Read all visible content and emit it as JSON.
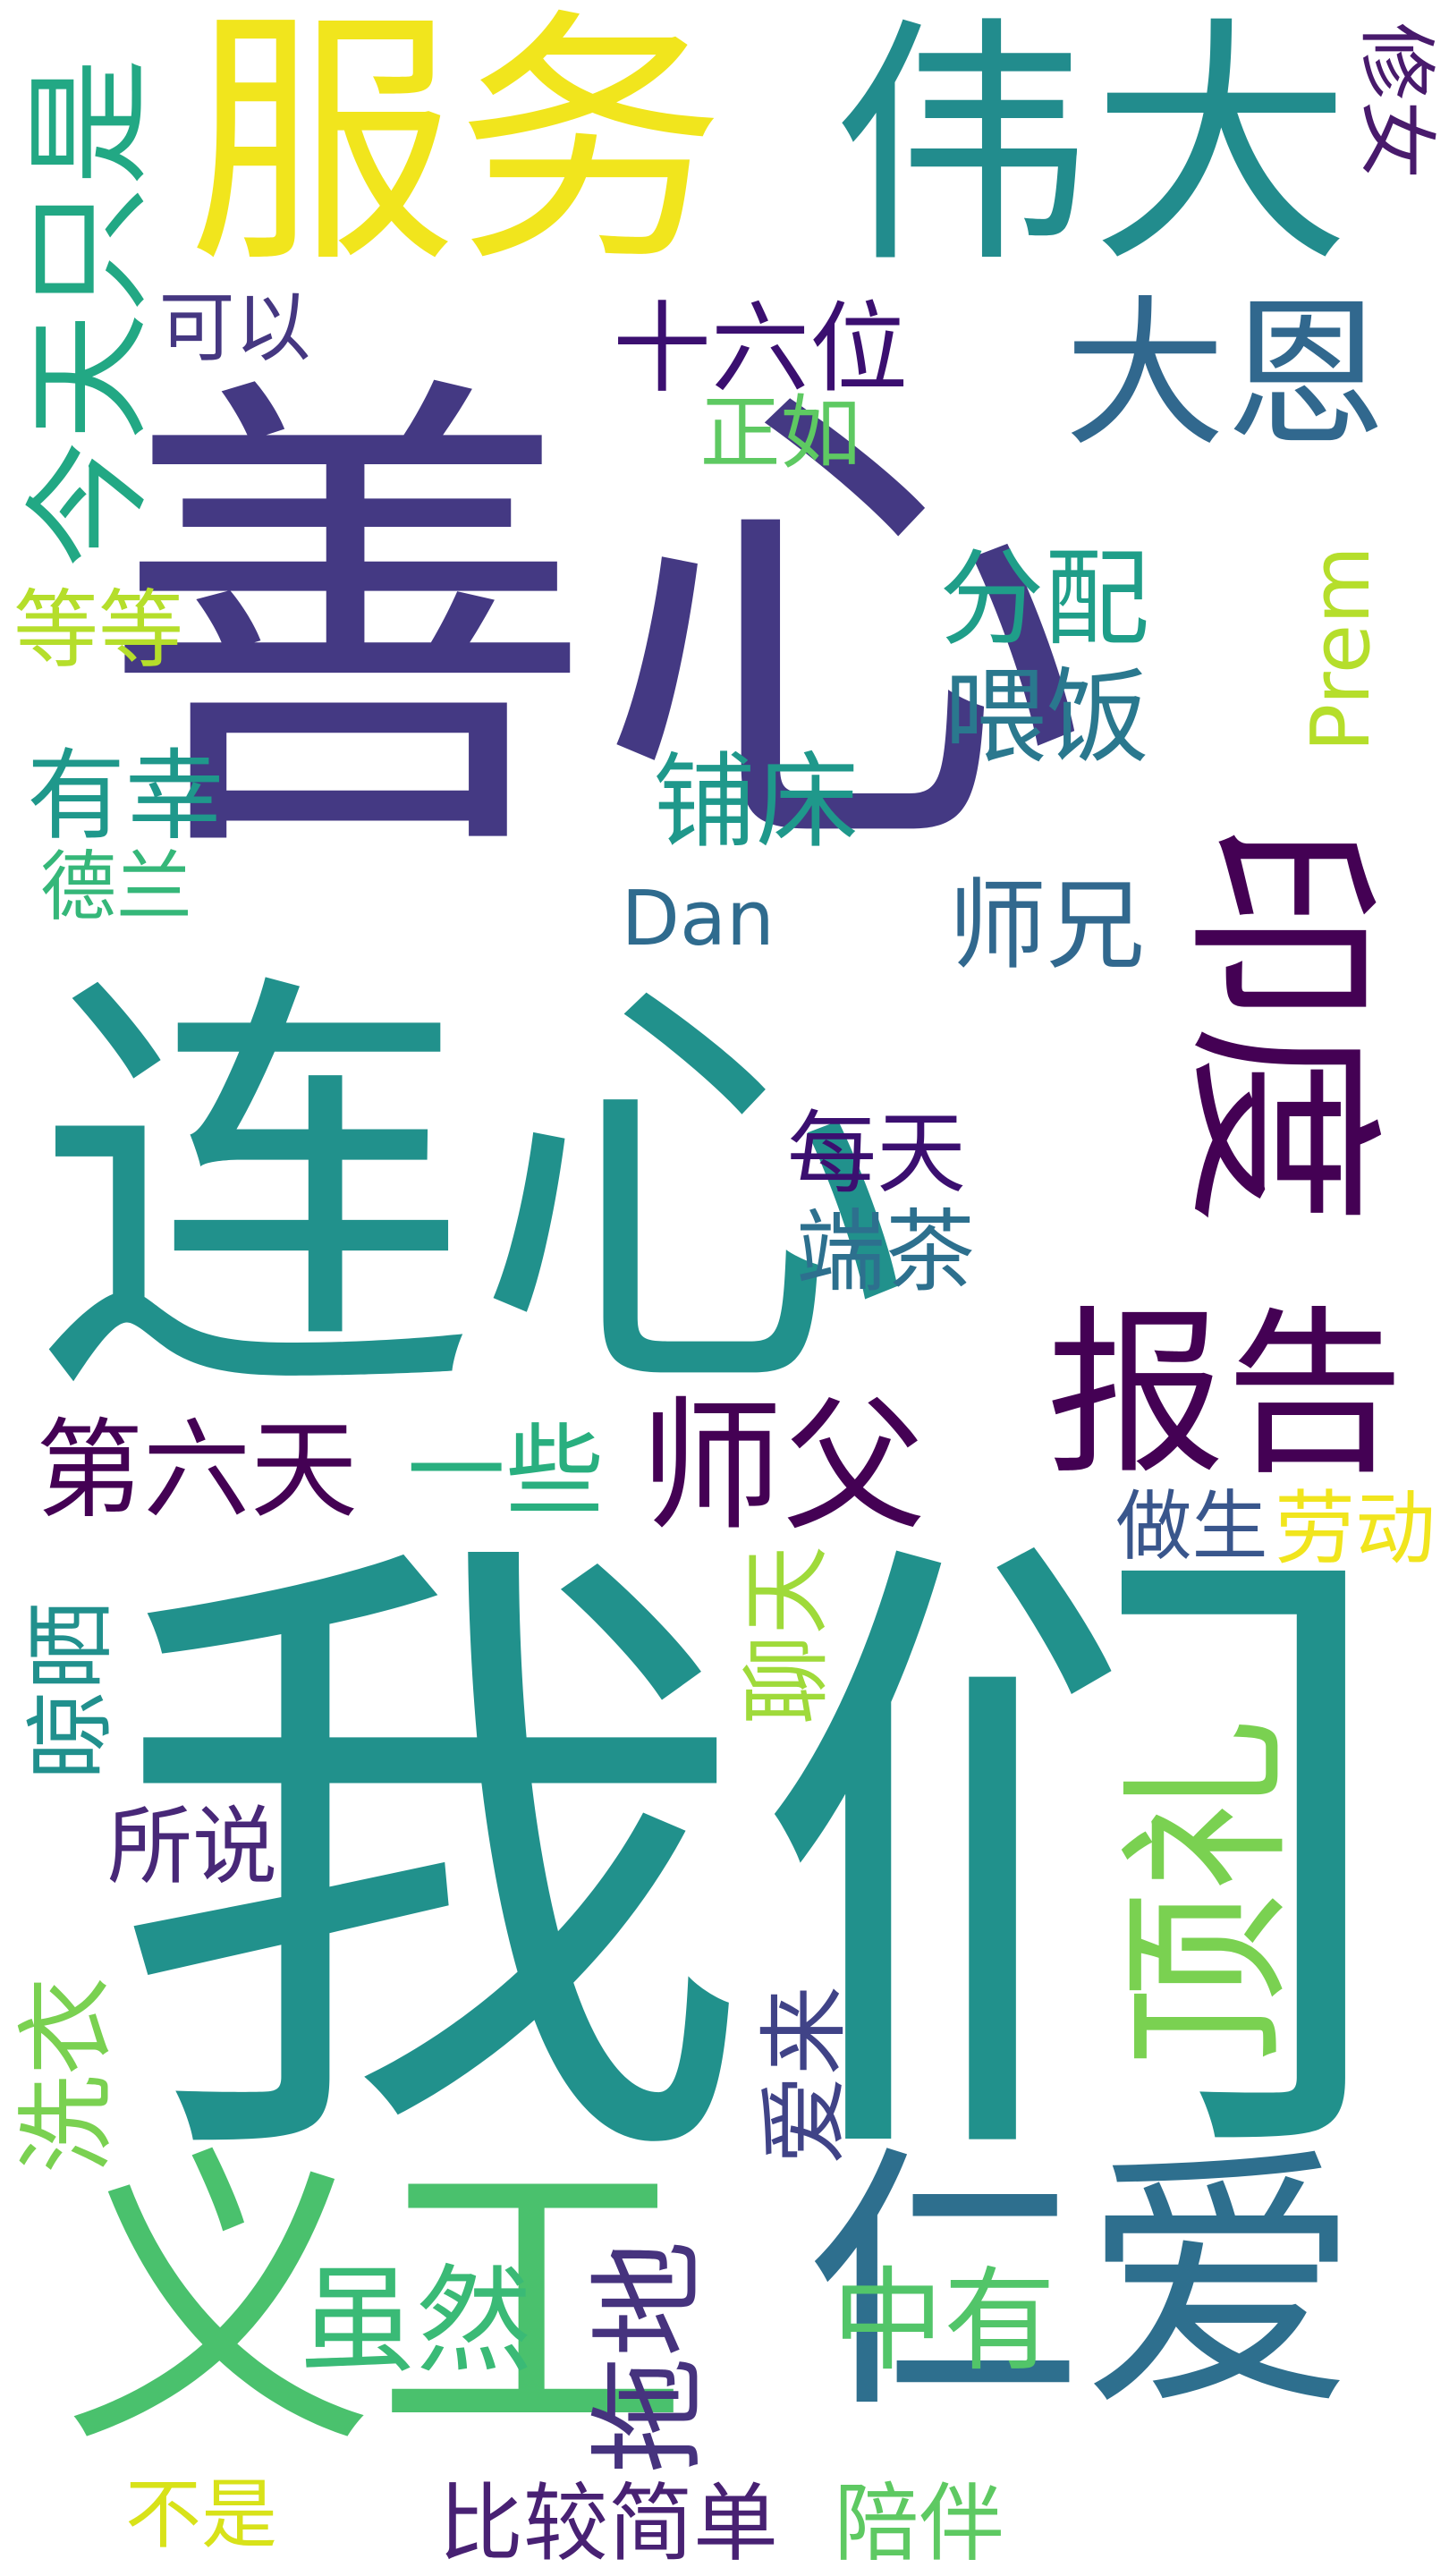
{
  "words": [
    {
      "id": "shanxin",
      "text": "善心",
      "color": "#443983",
      "orientation": "horizontal"
    },
    {
      "id": "lianxin",
      "text": "连心",
      "color": "#21918c",
      "orientation": "horizontal"
    },
    {
      "id": "women",
      "text": "我们",
      "color": "#21918c",
      "orientation": "horizontal"
    },
    {
      "id": "yigong",
      "text": "义工",
      "color": "#4ac16d",
      "orientation": "horizontal"
    },
    {
      "id": "renai",
      "text": "仁爱",
      "color": "#2e6f8e",
      "orientation": "horizontal"
    },
    {
      "id": "fuwu",
      "text": "服务",
      "color": "#f1e51d",
      "orientation": "horizontal"
    },
    {
      "id": "weida",
      "text": "伟大",
      "color": "#228c8d",
      "orientation": "horizontal"
    },
    {
      "id": "daen",
      "text": "大恩",
      "color": "#31688e",
      "orientation": "horizontal"
    },
    {
      "id": "yindu",
      "text": "印度",
      "color": "#440154",
      "orientation": "vertical-right"
    },
    {
      "id": "baogao",
      "text": "报告",
      "color": "#440154",
      "orientation": "horizontal"
    },
    {
      "id": "dingli",
      "text": "顶礼",
      "color": "#7ad151",
      "orientation": "vertical-left"
    },
    {
      "id": "jintianzhishi",
      "text": "今天只是",
      "color": "#22a884",
      "orientation": "vertical-left"
    },
    {
      "id": "xiunv",
      "text": "修女",
      "color": "#481a6c",
      "orientation": "vertical-right"
    },
    {
      "id": "shiliuwei",
      "text": "十六位",
      "color": "#3b0f70",
      "orientation": "horizontal"
    },
    {
      "id": "keyi",
      "text": "可以",
      "color": "#453781",
      "orientation": "horizontal"
    },
    {
      "id": "zhengru",
      "text": "正如",
      "color": "#5ec962",
      "orientation": "horizontal"
    },
    {
      "id": "dengdeng",
      "text": "等等",
      "color": "#b5de2b",
      "orientation": "horizontal"
    },
    {
      "id": "fenpei",
      "text": "分配",
      "color": "#1f9e89",
      "orientation": "horizontal"
    },
    {
      "id": "weifan",
      "text": "喂饭",
      "color": "#2a788e",
      "orientation": "horizontal"
    },
    {
      "id": "prem",
      "text": "Prem",
      "color": "#b5de2b",
      "orientation": "vertical-left"
    },
    {
      "id": "youxing",
      "text": "有幸",
      "color": "#1f988b",
      "orientation": "horizontal"
    },
    {
      "id": "puchuang",
      "text": "铺床",
      "color": "#1f988b",
      "orientation": "horizontal"
    },
    {
      "id": "delan",
      "text": "德兰",
      "color": "#35b779",
      "orientation": "horizontal"
    },
    {
      "id": "dan",
      "text": "Dan",
      "color": "#2f6b8e",
      "orientation": "horizontal"
    },
    {
      "id": "shixiong",
      "text": "师兄",
      "color": "#31688e",
      "orientation": "horizontal"
    },
    {
      "id": "meitian",
      "text": "每天",
      "color": "#3b0f70",
      "orientation": "horizontal"
    },
    {
      "id": "duancha",
      "text": "端茶",
      "color": "#2d708e",
      "orientation": "horizontal"
    },
    {
      "id": "diliutian",
      "text": "第六天",
      "color": "#440154",
      "orientation": "horizontal"
    },
    {
      "id": "yixie",
      "text": "一些",
      "color": "#29af7f",
      "orientation": "horizontal"
    },
    {
      "id": "shifu",
      "text": "师父",
      "color": "#440154",
      "orientation": "horizontal"
    },
    {
      "id": "zuosheng",
      "text": "做生",
      "color": "#39568c",
      "orientation": "horizontal"
    },
    {
      "id": "laodong",
      "text": "劳动",
      "color": "#f1e51d",
      "orientation": "horizontal"
    },
    {
      "id": "liaotian",
      "text": "聊天",
      "color": "#9fda3a",
      "orientation": "vertical-left"
    },
    {
      "id": "liangshai",
      "text": "晾晒",
      "color": "#21908d",
      "orientation": "vertical-left"
    },
    {
      "id": "suoshuo",
      "text": "所说",
      "color": "#482878",
      "orientation": "horizontal"
    },
    {
      "id": "xiyi",
      "text": "洗衣",
      "color": "#7ad151",
      "orientation": "vertical-left"
    },
    {
      "id": "ailai",
      "text": "爱来",
      "color": "#404387",
      "orientation": "vertical-left"
    },
    {
      "id": "suiran",
      "text": "虽然",
      "color": "#3aba76",
      "orientation": "horizontal"
    },
    {
      "id": "tuodi",
      "text": "拖地",
      "color": "#46337e",
      "orientation": "vertical-left"
    },
    {
      "id": "zhongyou",
      "text": "中有",
      "color": "#52c569",
      "orientation": "horizontal"
    },
    {
      "id": "bushi",
      "text": "不是",
      "color": "#d8e219",
      "orientation": "horizontal"
    },
    {
      "id": "bijiaojiandan",
      "text": "比较简单",
      "color": "#482173",
      "orientation": "horizontal"
    },
    {
      "id": "peiban",
      "text": "陪伴",
      "color": "#5ec962",
      "orientation": "horizontal"
    }
  ]
}
